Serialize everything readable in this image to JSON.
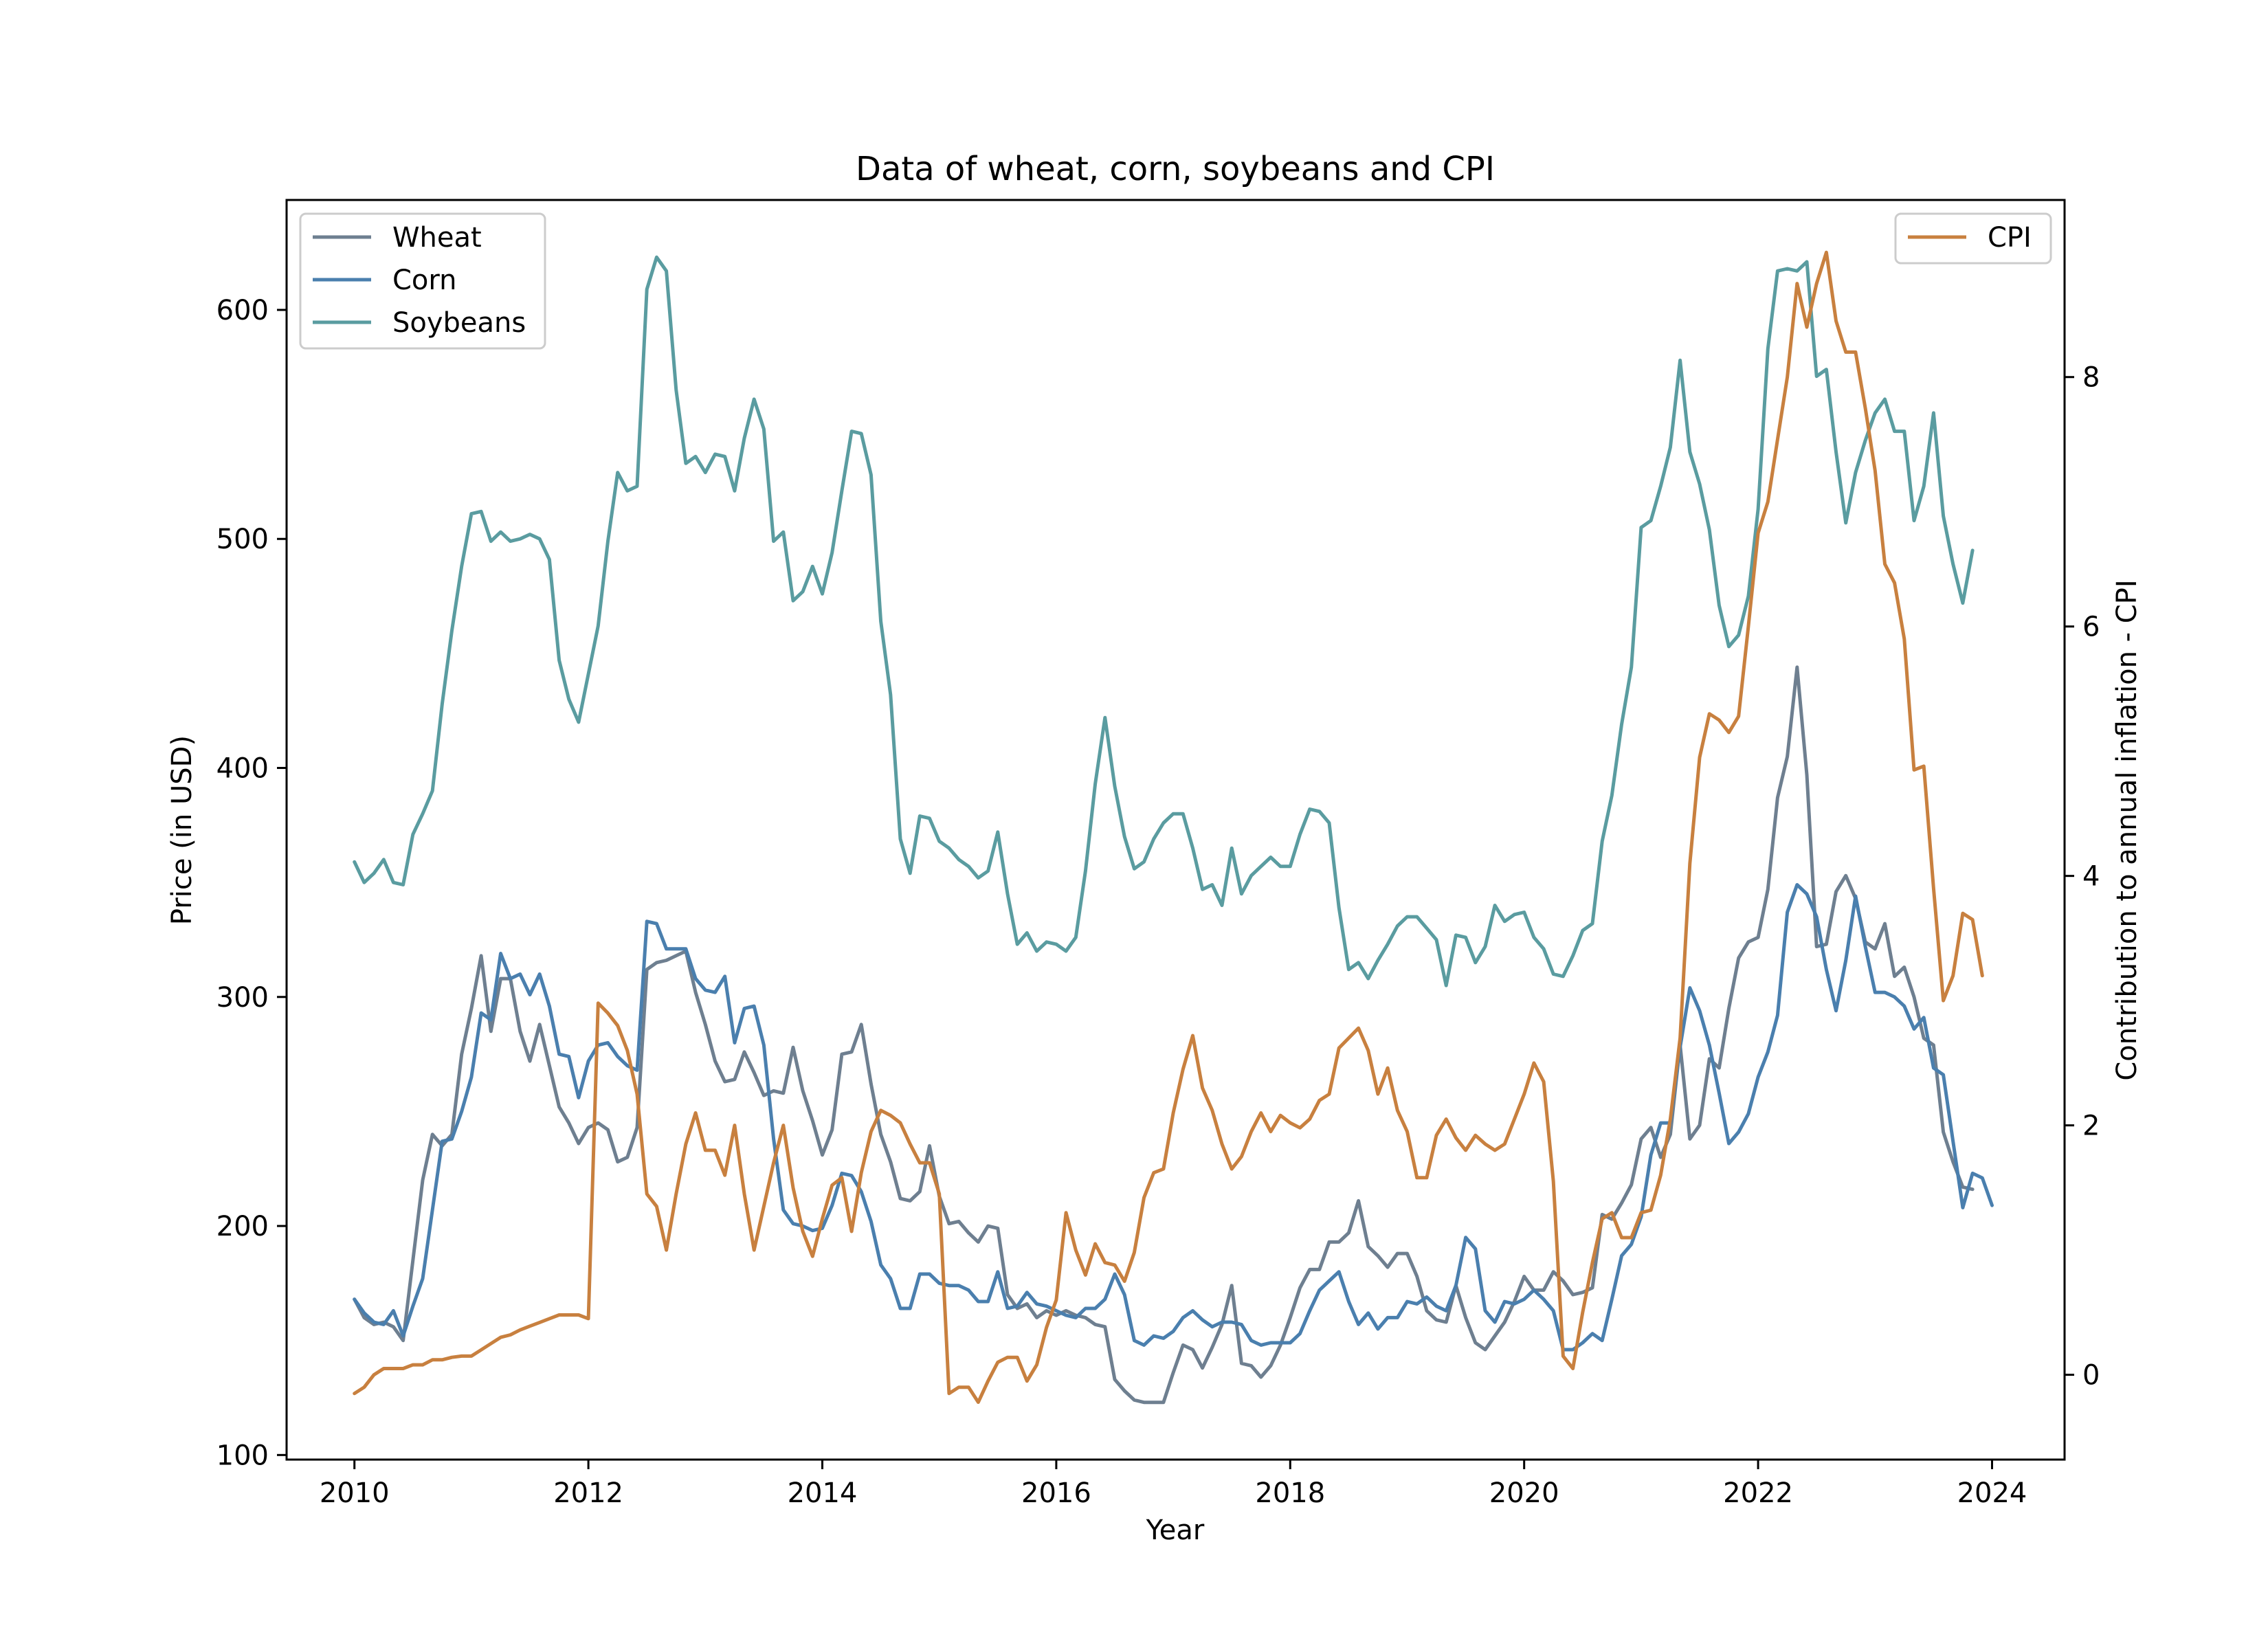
{
  "chart_data": {
    "type": "line",
    "title": "Data of wheat, corn, soybeans and CPI",
    "xlabel": "Year",
    "ylabel": "Price (in USD)",
    "y2label": "Contribution to annual inflation - CPI",
    "xlim": [
      2009.42,
      2024.62
    ],
    "ylim": [
      98,
      648
    ],
    "y2lim": [
      -0.68,
      9.42
    ],
    "x_ticks": [
      2010,
      2012,
      2014,
      2016,
      2018,
      2020,
      2022,
      2024
    ],
    "y_ticks": [
      100,
      200,
      300,
      400,
      500,
      600
    ],
    "y2_ticks": [
      0,
      2,
      4,
      6,
      8
    ],
    "legend_left": {
      "placement": "upper-left",
      "entries": [
        "Wheat",
        "Corn",
        "Soybeans"
      ]
    },
    "legend_right": {
      "placement": "upper-right",
      "entries": [
        "CPI"
      ]
    },
    "grid": false,
    "x_monthly_start": "2010-01",
    "series": [
      {
        "name": "Wheat",
        "axis": "left",
        "color": "#6e7f90",
        "values": [
          168,
          160,
          157,
          158,
          156,
          150,
          185,
          220,
          240,
          235,
          240,
          275,
          295,
          318,
          285,
          308,
          308,
          285,
          272,
          288,
          270,
          252,
          245,
          236,
          243,
          245,
          242,
          228,
          230,
          243,
          312,
          315,
          316,
          318,
          320,
          302,
          288,
          272,
          263,
          264,
          276,
          267,
          257,
          259,
          258,
          278,
          259,
          246,
          231,
          242,
          275,
          276,
          288,
          262,
          240,
          228,
          212,
          211,
          215,
          235,
          213,
          201,
          202,
          197,
          193,
          200,
          199,
          170,
          164,
          166,
          160,
          163,
          161,
          163,
          161,
          160,
          157,
          156,
          133,
          128,
          124,
          123,
          123,
          123,
          136,
          148,
          146,
          138,
          147,
          157,
          174,
          140,
          139,
          134,
          139,
          148,
          160,
          173,
          181,
          181,
          193,
          193,
          197,
          211,
          191,
          187,
          182,
          188,
          188,
          178,
          163,
          159,
          158,
          174,
          160,
          149,
          146,
          152,
          158,
          167,
          178,
          172,
          172,
          180,
          176,
          170,
          171,
          173,
          205,
          203,
          210,
          218,
          238,
          243,
          230,
          240,
          279,
          238,
          244,
          273,
          269,
          295,
          317,
          324,
          326,
          347,
          387,
          405,
          444,
          397,
          322,
          323,
          346,
          353,
          343,
          324,
          321,
          332,
          309,
          313,
          300,
          282,
          279,
          241,
          228,
          217,
          216
        ]
      },
      {
        "name": "Corn",
        "axis": "left",
        "color": "#4a7fae",
        "values": [
          168,
          162,
          158,
          157,
          163,
          152,
          165,
          177,
          207,
          237,
          238,
          250,
          265,
          293,
          290,
          319,
          308,
          310,
          301,
          310,
          296,
          275,
          274,
          256,
          272,
          279,
          280,
          274,
          270,
          268,
          333,
          332,
          321,
          321,
          321,
          308,
          303,
          302,
          309,
          280,
          295,
          296,
          279,
          238,
          207,
          201,
          200,
          198,
          199,
          209,
          223,
          222,
          215,
          202,
          183,
          177,
          164,
          164,
          179,
          179,
          175,
          174,
          174,
          172,
          167,
          167,
          180,
          164,
          165,
          171,
          166,
          165,
          163,
          161,
          160,
          164,
          164,
          168,
          179,
          170,
          150,
          148,
          152,
          151,
          154,
          160,
          163,
          159,
          156,
          158,
          158,
          157,
          150,
          148,
          149,
          149,
          149,
          153,
          163,
          172,
          176,
          180,
          167,
          157,
          162,
          155,
          160,
          160,
          167,
          166,
          169,
          165,
          163,
          174,
          195,
          190,
          163,
          158,
          167,
          166,
          168,
          172,
          168,
          163,
          146,
          146,
          149,
          153,
          150,
          168,
          187,
          192,
          204,
          231,
          245,
          245,
          278,
          304,
          294,
          279,
          258,
          236,
          241,
          249,
          265,
          276,
          292,
          337,
          349,
          345,
          335,
          312,
          294,
          316,
          344,
          322,
          302,
          302,
          300,
          296,
          286,
          291,
          269,
          266,
          237,
          208,
          223,
          221,
          209
        ]
      },
      {
        "name": "Soybeans",
        "axis": "left",
        "color": "#5a9ca0",
        "values": [
          359,
          350,
          354,
          360,
          350,
          349,
          371,
          380,
          390,
          428,
          460,
          488,
          511,
          512,
          499,
          503,
          499,
          500,
          502,
          500,
          491,
          447,
          430,
          420,
          441,
          462,
          499,
          529,
          521,
          523,
          609,
          623,
          617,
          565,
          533,
          536,
          529,
          537,
          536,
          521,
          544,
          561,
          548,
          499,
          503,
          473,
          477,
          488,
          476,
          494,
          521,
          547,
          546,
          528,
          464,
          432,
          369,
          354,
          379,
          378,
          368,
          365,
          360,
          357,
          352,
          355,
          372,
          345,
          323,
          328,
          320,
          324,
          323,
          320,
          326,
          355,
          393,
          422,
          392,
          370,
          356,
          359,
          369,
          376,
          380,
          380,
          365,
          347,
          349,
          340,
          365,
          345,
          353,
          357,
          361,
          357,
          357,
          371,
          382,
          381,
          376,
          339,
          312,
          315,
          308,
          316,
          323,
          331,
          335,
          335,
          330,
          325,
          305,
          327,
          326,
          315,
          322,
          340,
          333,
          336,
          337,
          326,
          321,
          310,
          309,
          318,
          329,
          332,
          368,
          388,
          419,
          444,
          505,
          508,
          523,
          540,
          578,
          538,
          524,
          504,
          471,
          453,
          458,
          475,
          513,
          583,
          617,
          618,
          617,
          621,
          571,
          574,
          538,
          507,
          529,
          543,
          555,
          561,
          547,
          547,
          508,
          523,
          555,
          510,
          489,
          472,
          495
        ]
      },
      {
        "name": "CPI",
        "axis": "right",
        "color": "#c8803f",
        "values": [
          -0.15,
          -0.1,
          0.0,
          0.05,
          0.05,
          0.05,
          0.08,
          0.08,
          0.12,
          0.12,
          0.14,
          0.15,
          0.15,
          0.2,
          0.25,
          0.3,
          0.32,
          0.36,
          0.39,
          0.42,
          0.45,
          0.48,
          0.48,
          0.48,
          0.45,
          2.98,
          2.9,
          2.8,
          2.6,
          2.25,
          1.45,
          1.35,
          1.0,
          1.45,
          1.85,
          2.1,
          1.8,
          1.8,
          1.6,
          2.0,
          1.45,
          1.0,
          1.35,
          1.7,
          2.0,
          1.5,
          1.15,
          0.95,
          1.25,
          1.52,
          1.58,
          1.15,
          1.62,
          1.95,
          2.12,
          2.08,
          2.02,
          1.85,
          1.7,
          1.7,
          1.45,
          -0.15,
          -0.1,
          -0.1,
          -0.22,
          -0.05,
          0.1,
          0.14,
          0.14,
          -0.05,
          0.08,
          0.38,
          0.6,
          1.3,
          1.0,
          0.8,
          1.05,
          0.9,
          0.88,
          0.75,
          0.98,
          1.42,
          1.62,
          1.65,
          2.1,
          2.45,
          2.72,
          2.3,
          2.12,
          1.85,
          1.65,
          1.75,
          1.95,
          2.1,
          1.95,
          2.08,
          2.02,
          1.98,
          2.05,
          2.2,
          2.25,
          2.62,
          2.7,
          2.78,
          2.6,
          2.25,
          2.46,
          2.12,
          1.95,
          1.58,
          1.58,
          1.92,
          2.05,
          1.9,
          1.8,
          1.92,
          1.85,
          1.8,
          1.85,
          2.05,
          2.25,
          2.5,
          2.35,
          1.55,
          0.15,
          0.05,
          0.5,
          0.9,
          1.25,
          1.3,
          1.1,
          1.1,
          1.3,
          1.32,
          1.6,
          2.05,
          2.7,
          4.1,
          4.95,
          5.3,
          5.25,
          5.15,
          5.28,
          6.0,
          6.75,
          7.0,
          7.5,
          8.0,
          8.75,
          8.4,
          8.75,
          9.0,
          8.45,
          8.2,
          8.2,
          7.75,
          7.25,
          6.5,
          6.35,
          5.9,
          4.85,
          4.88,
          3.9,
          3.0,
          3.2,
          3.7,
          3.65,
          3.2
        ]
      }
    ]
  }
}
